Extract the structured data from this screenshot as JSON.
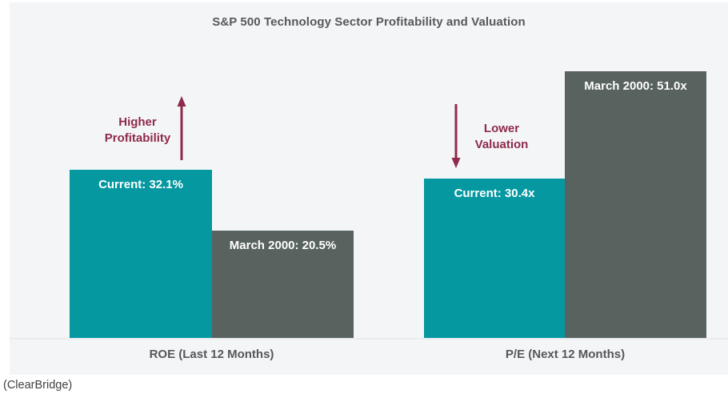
{
  "caption": "(ClearBridge)",
  "colors": {
    "panel_background": "#f4f5f7",
    "current_bar": "#0598a1",
    "march2000_bar": "#586360",
    "annotation": "#8e2a4a",
    "title_text": "#57585b",
    "bar_label_text": "#ffffff"
  },
  "chart_data": {
    "type": "bar",
    "title": "S&P 500 Technology Sector Profitability and Valuation",
    "categories": [
      "ROE (Last 12 Months)",
      "P/E (Next 12 Months)"
    ],
    "series": [
      {
        "name": "Current",
        "values": [
          32.1,
          30.4
        ],
        "color": "#0598a1"
      },
      {
        "name": "March 2000",
        "values": [
          20.5,
          51.0
        ],
        "color": "#586360"
      }
    ],
    "bar_labels": [
      [
        "Current: 32.1%",
        "March 2000: 20.5%"
      ],
      [
        "Current: 30.4x",
        "March 2000: 51.0x"
      ]
    ],
    "annotations": [
      {
        "text_lines": [
          "Higher",
          "Profitability"
        ],
        "direction": "up",
        "color": "#8e2a4a"
      },
      {
        "text_lines": [
          "Lower",
          "Valuation"
        ],
        "direction": "down",
        "color": "#8e2a4a"
      }
    ],
    "value_units": [
      "percent",
      "multiple"
    ],
    "ylim": [
      0,
      55
    ],
    "grid": false,
    "legend_position": "none",
    "xlabel": "",
    "ylabel": ""
  }
}
